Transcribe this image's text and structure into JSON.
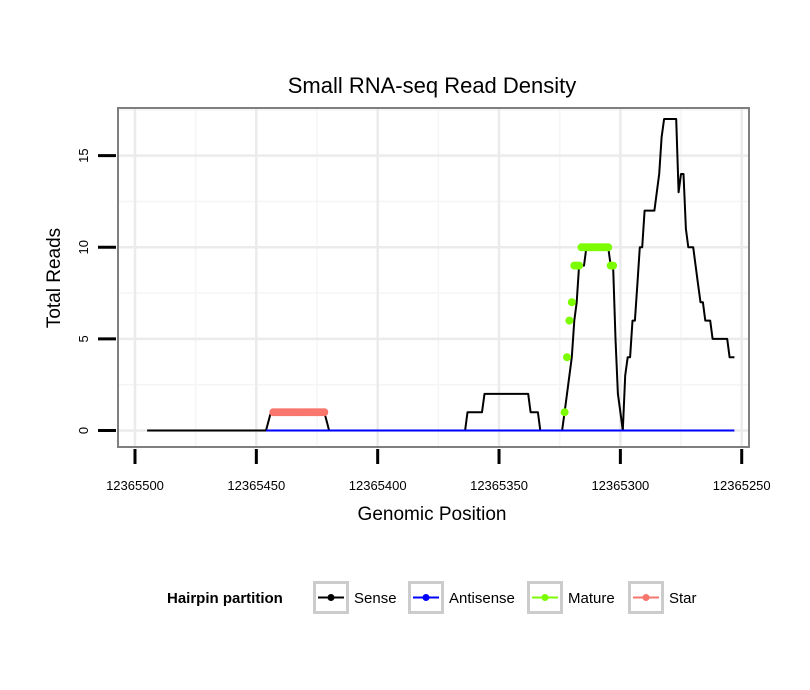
{
  "chart_data": {
    "type": "line",
    "title": "Small RNA-seq Read Density",
    "xlabel": "Genomic Position",
    "ylabel": "Total Reads",
    "xlim": [
      12365247,
      12365507
    ],
    "ylim": [
      -0.9,
      17.6
    ],
    "x_reversed": true,
    "x_ticks": [
      12365500,
      12365450,
      12365400,
      12365350,
      12365300,
      12365250
    ],
    "x_tick_labels": [
      "12365500",
      "12365450",
      "12365400",
      "12365350",
      "12365300",
      "12365250"
    ],
    "y_ticks": [
      0,
      5,
      10,
      15
    ],
    "y_tick_labels": [
      "0",
      "5",
      "10",
      "15"
    ],
    "grid": true,
    "legend": {
      "title": "Hairpin partition",
      "position": "bottom",
      "entries": [
        {
          "name": "Sense",
          "color": "#000000"
        },
        {
          "name": "Antisense",
          "color": "#0000ff"
        },
        {
          "name": "Mature",
          "color": "#7cfc00"
        },
        {
          "name": "Star",
          "color": "#f8766d"
        }
      ]
    },
    "series": [
      {
        "name": "Sense",
        "kind": "line",
        "color": "#000000",
        "x": [
          12365495,
          12365446,
          12365445,
          12365444,
          12365422,
          12365421,
          12365420,
          12365395,
          12365364,
          12365363,
          12365357,
          12365356,
          12365349,
          12365338,
          12365337,
          12365334,
          12365333,
          12365324,
          12365323,
          12365320,
          12365319,
          12365318,
          12365317,
          12365316,
          12365315,
          12365314,
          12365313,
          12365312,
          12365311,
          12365310,
          12365309,
          12365308,
          12365307,
          12365306,
          12365305,
          12365304,
          12365303,
          12365302,
          12365301,
          12365300,
          12365299,
          12365298,
          12365297,
          12365296,
          12365295,
          12365294,
          12365293,
          12365292,
          12365291,
          12365290,
          12365289,
          12365288,
          12365287,
          12365286,
          12365285,
          12365284,
          12365283,
          12365282,
          12365281,
          12365280,
          12365279,
          12365278,
          12365277,
          12365276,
          12365275,
          12365274,
          12365273,
          12365272,
          12365271,
          12365270,
          12365269,
          12365268,
          12365267,
          12365266,
          12365265,
          12365264,
          12365263,
          12365262,
          12365261,
          12365260,
          12365259,
          12365258,
          12365257,
          12365256,
          12365255,
          12365254,
          12365253
        ],
        "y": [
          0,
          0,
          0.5,
          1,
          1,
          0.5,
          0,
          0,
          0,
          1,
          1,
          2,
          2,
          2,
          1,
          1,
          0,
          0,
          1,
          4,
          6,
          7,
          9,
          9,
          9,
          10,
          10,
          10,
          10,
          10,
          10,
          10,
          10,
          10,
          10,
          9,
          9,
          5,
          2,
          1,
          0,
          3,
          4,
          4,
          6,
          6,
          8,
          10,
          10,
          12,
          12,
          12,
          12,
          12,
          13,
          14,
          16,
          17,
          17,
          17,
          17,
          17,
          17,
          13,
          14,
          14,
          11,
          10,
          10,
          10,
          9,
          8,
          7,
          7,
          6,
          6,
          6,
          5,
          5,
          5,
          5,
          5,
          5,
          5,
          4,
          4,
          4
        ]
      },
      {
        "name": "Antisense",
        "kind": "line",
        "color": "#0000ff",
        "x": [
          12365446,
          12365253
        ],
        "y": [
          0,
          0
        ]
      },
      {
        "name": "Mature",
        "kind": "points",
        "color": "#7cfc00",
        "x": [
          12365323,
          12365322,
          12365321,
          12365320,
          12365319,
          12365318,
          12365317,
          12365316,
          12365315,
          12365314,
          12365313,
          12365312,
          12365311,
          12365310,
          12365309,
          12365308,
          12365307,
          12365306,
          12365305,
          12365304,
          12365303
        ],
        "y": [
          1,
          4,
          6,
          7,
          9,
          9,
          9,
          10,
          10,
          10,
          10,
          10,
          10,
          10,
          10,
          10,
          10,
          10,
          10,
          9,
          9
        ]
      },
      {
        "name": "Star",
        "kind": "points",
        "color": "#f8766d",
        "x": [
          12365443,
          12365442,
          12365441,
          12365440,
          12365439,
          12365438,
          12365437,
          12365436,
          12365435,
          12365434,
          12365433,
          12365432,
          12365431,
          12365430,
          12365429,
          12365428,
          12365427,
          12365426,
          12365425,
          12365424,
          12365423,
          12365422
        ],
        "y": [
          1,
          1,
          1,
          1,
          1,
          1,
          1,
          1,
          1,
          1,
          1,
          1,
          1,
          1,
          1,
          1,
          1,
          1,
          1,
          1,
          1,
          1
        ]
      }
    ]
  }
}
